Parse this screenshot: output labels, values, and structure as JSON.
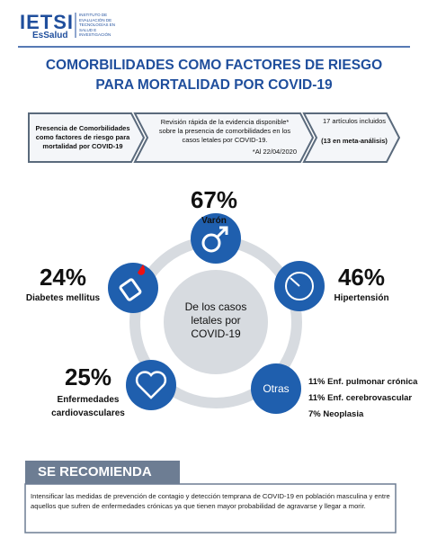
{
  "header": {
    "logo": "IETSI",
    "subtitle": "EsSalud",
    "institute": "INSTITUTO DE EVALUACIÓN DE TECNOLOGÍAS EN SALUD E INVESTIGACIÓN"
  },
  "title": {
    "line1": "COMORBILIDADES COMO FACTORES DE RIESGO",
    "line2": "PARA MORTALIDAD POR COVID-19"
  },
  "steps": [
    {
      "text": "Presencia de Comorbilidades como factores de riesgo para mortalidad por COVID-19"
    },
    {
      "text": "Revisión rápida de la evidencia disponible* sobre la presencia de comorbilidades en los casos letales por COVID-19.",
      "note": "*Al 22/04/2020"
    },
    {
      "text": "17 artículos incluidos",
      "detail": "(13 en meta-análisis)"
    }
  ],
  "center": "De los casos letales por COVID-19",
  "factors": [
    {
      "value": "67%",
      "label": "Varón"
    },
    {
      "value": "24%",
      "label": "Diabetes mellitus"
    },
    {
      "value": "46%",
      "label": "Hipertensión"
    },
    {
      "value": "25%",
      "label": "Enfermedades cardiovasculares"
    }
  ],
  "others": {
    "label": "Otras",
    "items": [
      "11% Enf. pulmonar crónica",
      "11% Enf. cerebrovascular",
      "7% Neoplasia"
    ]
  },
  "recommendation": {
    "title": "SE RECOMIENDA",
    "text": "Intensificar las medidas de prevención de contagio y detección temprana de COVID-19 en población masculina y entre aquellos que sufren de enfermedades crónicas ya que tienen mayor probabilidad de agravarse y llegar a morir."
  }
}
